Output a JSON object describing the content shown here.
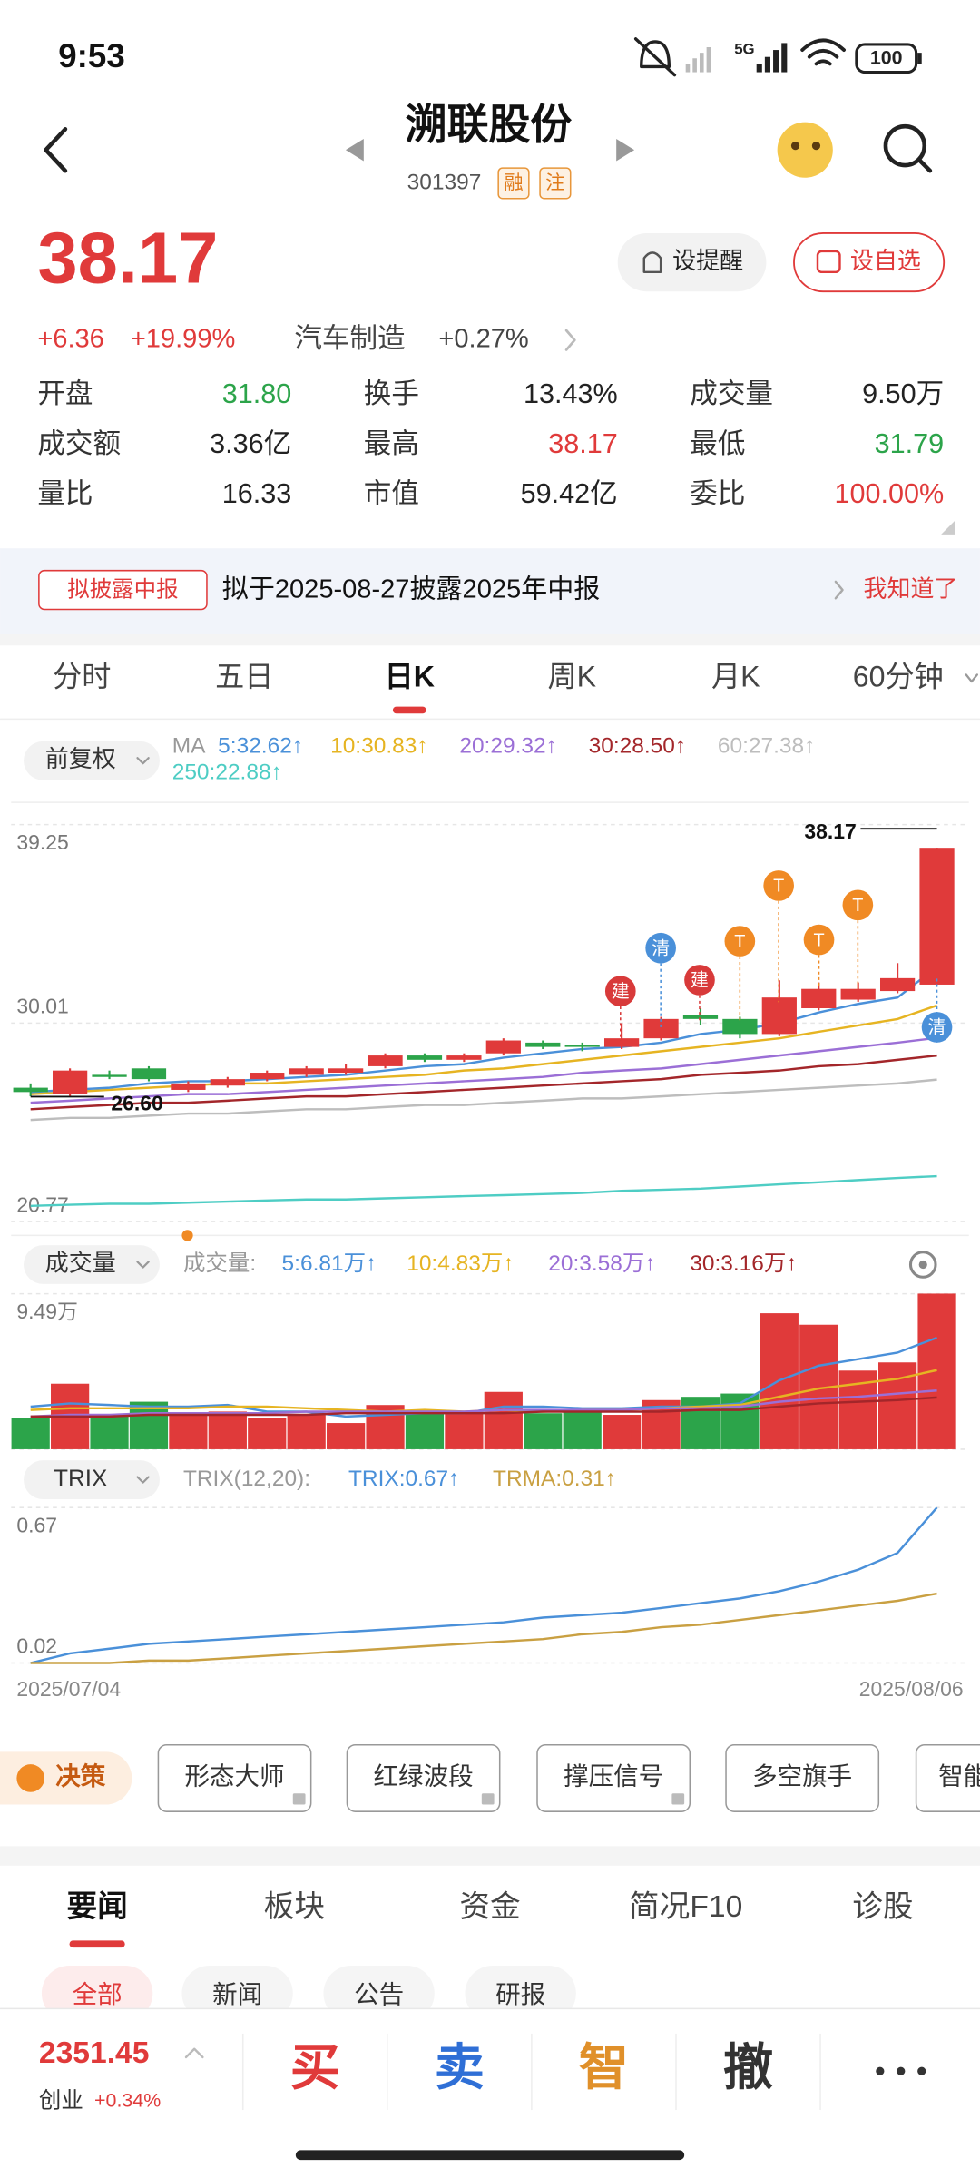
{
  "status": {
    "time": "9:53",
    "network": "5G",
    "battery": "100"
  },
  "header": {
    "title": "溯联股份",
    "code": "301397",
    "badges": [
      "融",
      "注"
    ]
  },
  "quote": {
    "price": "38.17",
    "change": "+6.36",
    "change_pct": "+19.99%",
    "sector": "汽车制造",
    "sector_pct": "+0.27%",
    "buttons": [
      "设提醒",
      "设自选"
    ],
    "stats": [
      {
        "label": "开盘",
        "value": "31.80",
        "color": "#2ca44a"
      },
      {
        "label": "换手",
        "value": "13.43%",
        "color": "#222222"
      },
      {
        "label": "成交量",
        "value": "9.50万",
        "color": "#222222"
      },
      {
        "label": "成交额",
        "value": "3.36亿",
        "color": "#222222"
      },
      {
        "label": "最高",
        "value": "38.17",
        "color": "#e03a3a"
      },
      {
        "label": "最低",
        "value": "31.79",
        "color": "#2ca44a"
      },
      {
        "label": "量比",
        "value": "16.33",
        "color": "#222222"
      },
      {
        "label": "市值",
        "value": "59.42亿",
        "color": "#222222"
      },
      {
        "label": "委比",
        "value": "100.00%",
        "color": "#e03a3a"
      }
    ]
  },
  "notice": {
    "tag": "拟披露中报",
    "text": "拟于2025-08-27披露2025年中报",
    "action": "我知道了"
  },
  "period_tabs": [
    "分时",
    "五日",
    "日K",
    "周K",
    "月K",
    "60分钟"
  ],
  "chart_data": [
    {
      "type": "candlestick",
      "adjust": "前复权",
      "ma_label": "MA",
      "up_color": "#e03a3a",
      "down_color": "#2ca44a",
      "ylim": [
        20.77,
        39.25
      ],
      "yticks": [
        20.77,
        30.01,
        39.25
      ],
      "open": [
        27.0,
        26.7,
        27.6,
        27.9,
        26.9,
        27.1,
        27.4,
        27.6,
        27.7,
        28.0,
        28.5,
        28.3,
        28.6,
        29.1,
        29.0,
        28.9,
        29.3,
        30.4,
        30.2,
        29.5,
        30.7,
        31.1,
        31.5,
        31.8
      ],
      "high": [
        27.2,
        27.9,
        27.8,
        28.0,
        27.3,
        27.5,
        27.8,
        28.0,
        28.1,
        28.6,
        28.6,
        28.6,
        29.3,
        29.2,
        29.1,
        30.0,
        30.3,
        30.7,
        30.3,
        32.0,
        31.9,
        31.9,
        32.8,
        38.17
      ],
      "low": [
        26.6,
        26.6,
        27.4,
        27.3,
        26.8,
        27.0,
        27.3,
        27.5,
        27.6,
        27.9,
        28.2,
        28.2,
        28.5,
        28.8,
        28.7,
        28.8,
        29.2,
        29.9,
        29.3,
        29.4,
        30.6,
        31.0,
        31.4,
        31.79
      ],
      "close": [
        26.8,
        27.8,
        27.5,
        27.4,
        27.2,
        27.4,
        27.7,
        27.9,
        27.9,
        28.5,
        28.3,
        28.5,
        29.2,
        28.9,
        28.9,
        29.3,
        30.2,
        30.2,
        29.5,
        31.2,
        31.6,
        31.6,
        32.1,
        38.17
      ],
      "ma": [
        {
          "name": "5:32.62↑",
          "color": "#4a90d9",
          "values": [
            26.8,
            26.9,
            27.0,
            27.2,
            27.3,
            27.3,
            27.4,
            27.5,
            27.6,
            27.8,
            28.0,
            28.1,
            28.4,
            28.6,
            28.8,
            28.9,
            29.1,
            29.5,
            29.7,
            30.0,
            30.5,
            30.9,
            31.2,
            32.62
          ]
        },
        {
          "name": "10:30.83↑",
          "color": "#e6b422",
          "values": [
            26.7,
            26.8,
            26.9,
            27.0,
            27.1,
            27.2,
            27.2,
            27.3,
            27.4,
            27.5,
            27.6,
            27.8,
            27.9,
            28.1,
            28.3,
            28.5,
            28.7,
            28.9,
            29.1,
            29.3,
            29.6,
            29.9,
            30.2,
            30.83
          ]
        },
        {
          "name": "20:29.32↑",
          "color": "#9b6fd6",
          "values": [
            26.3,
            26.4,
            26.5,
            26.6,
            26.7,
            26.7,
            26.8,
            26.9,
            27.0,
            27.1,
            27.2,
            27.3,
            27.4,
            27.5,
            27.7,
            27.8,
            27.9,
            28.1,
            28.3,
            28.5,
            28.7,
            28.9,
            29.1,
            29.32
          ]
        },
        {
          "name": "30:28.50↑",
          "color": "#a3262a",
          "values": [
            26.0,
            26.1,
            26.2,
            26.3,
            26.3,
            26.4,
            26.5,
            26.6,
            26.6,
            26.7,
            26.8,
            26.9,
            27.0,
            27.1,
            27.2,
            27.3,
            27.4,
            27.6,
            27.7,
            27.8,
            28.0,
            28.1,
            28.3,
            28.5
          ]
        },
        {
          "name": "60:27.38↑",
          "color": "#bdbdbd",
          "values": [
            25.5,
            25.6,
            25.6,
            25.7,
            25.8,
            25.8,
            25.9,
            26.0,
            26.0,
            26.1,
            26.2,
            26.2,
            26.3,
            26.4,
            26.5,
            26.5,
            26.6,
            26.7,
            26.8,
            26.9,
            27.0,
            27.1,
            27.2,
            27.38
          ]
        },
        {
          "name": "250:22.88↑",
          "color": "#4ecdc4",
          "values": [
            21.5,
            21.55,
            21.6,
            21.6,
            21.65,
            21.7,
            21.75,
            21.8,
            21.8,
            21.85,
            21.9,
            21.95,
            22.0,
            22.05,
            22.1,
            22.2,
            22.25,
            22.3,
            22.4,
            22.5,
            22.6,
            22.7,
            22.8,
            22.88
          ]
        }
      ],
      "annotations": {
        "high": "38.17",
        "low": "26.60"
      },
      "markers": [
        {
          "label": "建",
          "color": "#d83a3a"
        },
        {
          "label": "清",
          "color": "#4a90d9"
        },
        {
          "label": "建",
          "color": "#d83a3a"
        },
        {
          "label": "T",
          "color": "#f08a24"
        },
        {
          "label": "T",
          "color": "#f08a24"
        },
        {
          "label": "T",
          "color": "#f08a24"
        },
        {
          "label": "T",
          "color": "#f08a24"
        },
        {
          "label": "清",
          "color": "#4a90d9"
        }
      ]
    },
    {
      "type": "bar",
      "title": "成交量",
      "legend_label": "成交量:",
      "ylim": [
        0,
        9.49
      ],
      "yticks": [
        0,
        {
          "value": 9.49,
          "label": "9.49万"
        }
      ],
      "values": [
        1.9,
        4.0,
        2.0,
        2.9,
        2.2,
        2.3,
        1.9,
        2.1,
        1.6,
        2.7,
        2.3,
        2.3,
        3.5,
        2.2,
        2.3,
        2.1,
        3.0,
        3.2,
        3.4,
        8.3,
        7.6,
        4.8,
        5.3,
        9.5
      ],
      "ma": [
        {
          "name": "5:6.81万↑",
          "color": "#4a90d9",
          "values": [
            2.6,
            2.8,
            2.7,
            2.6,
            2.6,
            2.7,
            2.3,
            2.3,
            2.0,
            2.1,
            2.2,
            2.2,
            2.6,
            2.6,
            2.5,
            2.5,
            2.6,
            2.6,
            2.8,
            4.2,
            5.1,
            5.5,
            5.9,
            6.81
          ]
        },
        {
          "name": "10:4.83万↑",
          "color": "#e6b422",
          "values": [
            2.4,
            2.5,
            2.5,
            2.5,
            2.5,
            2.6,
            2.6,
            2.5,
            2.4,
            2.3,
            2.4,
            2.3,
            2.4,
            2.3,
            2.4,
            2.4,
            2.5,
            2.6,
            2.7,
            3.2,
            3.7,
            4.0,
            4.3,
            4.83
          ]
        },
        {
          "name": "20:3.58万↑",
          "color": "#9b6fd6",
          "values": [
            2.0,
            2.1,
            2.1,
            2.2,
            2.2,
            2.2,
            2.2,
            2.3,
            2.3,
            2.3,
            2.3,
            2.3,
            2.4,
            2.4,
            2.4,
            2.4,
            2.5,
            2.5,
            2.6,
            2.9,
            3.1,
            3.2,
            3.4,
            3.58
          ]
        },
        {
          "name": "30:3.16万↑",
          "color": "#a3262a",
          "values": [
            2.0,
            2.0,
            2.0,
            2.1,
            2.1,
            2.1,
            2.1,
            2.1,
            2.2,
            2.2,
            2.2,
            2.2,
            2.2,
            2.3,
            2.3,
            2.3,
            2.3,
            2.4,
            2.4,
            2.6,
            2.8,
            2.9,
            3.0,
            3.16
          ]
        }
      ]
    },
    {
      "type": "line",
      "title": "TRIX",
      "params": "TRIX(12,20):",
      "ylim": [
        0.02,
        0.67
      ],
      "yticks": [
        0.02,
        0.67
      ],
      "categories": [
        "2025/07/04",
        null,
        null,
        null,
        null,
        null,
        null,
        null,
        null,
        null,
        null,
        null,
        null,
        null,
        null,
        null,
        null,
        null,
        null,
        null,
        null,
        null,
        null,
        "2025/08/06"
      ],
      "series": [
        {
          "name": "TRIX:0.67↑",
          "color": "#4a90d9",
          "values": [
            0.02,
            0.06,
            0.08,
            0.1,
            0.11,
            0.12,
            0.13,
            0.14,
            0.15,
            0.16,
            0.17,
            0.18,
            0.19,
            0.21,
            0.22,
            0.23,
            0.25,
            0.27,
            0.29,
            0.32,
            0.36,
            0.41,
            0.48,
            0.67
          ]
        },
        {
          "name": "TRMA:0.31↑",
          "color": "#c9a042",
          "values": [
            0.02,
            0.02,
            0.02,
            0.03,
            0.03,
            0.04,
            0.05,
            0.06,
            0.07,
            0.08,
            0.09,
            0.1,
            0.11,
            0.12,
            0.14,
            0.15,
            0.17,
            0.18,
            0.2,
            0.22,
            0.24,
            0.26,
            0.28,
            0.31
          ]
        }
      ]
    }
  ],
  "tools": {
    "label": "决策",
    "items": [
      "形态大师",
      "红绿波段",
      "撑压信号",
      "多空旗手",
      "智能"
    ]
  },
  "news_tabs": [
    "要闻",
    "板块",
    "资金",
    "简况F10",
    "诊股"
  ],
  "news_filters": [
    "全部",
    "新闻",
    "公告",
    "研报"
  ],
  "bottom": {
    "index_value": "2351.45",
    "index_name": "创业",
    "index_pct": "+0.34%",
    "actions": [
      "买",
      "卖",
      "智",
      "撤"
    ]
  }
}
